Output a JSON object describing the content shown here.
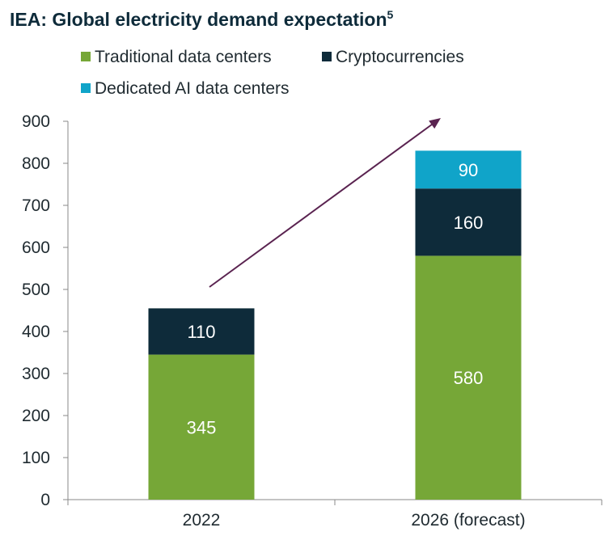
{
  "chart_data": {
    "type": "bar",
    "stacked": true,
    "title": "IEA: Global electricity demand expectation",
    "title_superscript": "5",
    "categories": [
      "2022",
      "2026 (forecast)"
    ],
    "series": [
      {
        "name": "Traditional data centers",
        "values": [
          345,
          580
        ],
        "color": "#76a737"
      },
      {
        "name": "Cryptocurrencies",
        "values": [
          110,
          160
        ],
        "color": "#0e2b3a"
      },
      {
        "name": "Dedicated AI data centers",
        "values": [
          null,
          90
        ],
        "color": "#10a4c9"
      }
    ],
    "data_labels": [
      [
        "345",
        "580"
      ],
      [
        "110",
        "160"
      ],
      [
        "",
        "90"
      ]
    ],
    "yticks": [
      "0",
      "100",
      "200",
      "300",
      "400",
      "500",
      "600",
      "700",
      "800",
      "900"
    ],
    "ylim": [
      0,
      900
    ],
    "xlabel": "",
    "ylabel": "",
    "grid": false,
    "legend_position": "top",
    "annotation": {
      "type": "arrow",
      "color": "#5a2350",
      "meaning": "upward trend"
    }
  }
}
